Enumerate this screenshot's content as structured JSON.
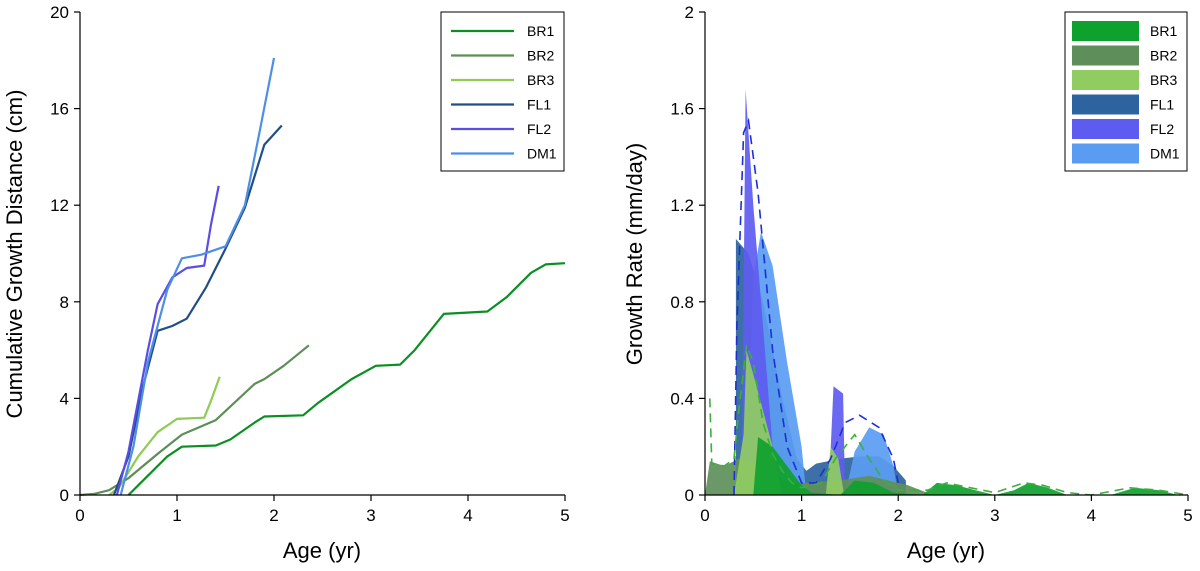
{
  "chart_data": [
    {
      "type": "line",
      "xlabel": "Age (yr)",
      "ylabel": "Cumulative Growth Distance (cm)",
      "xlim": [
        0,
        5
      ],
      "ylim": [
        0,
        20
      ],
      "xticks": [
        "0",
        "1",
        "2",
        "3",
        "4",
        "5"
      ],
      "yticks": [
        "0",
        "4",
        "8",
        "12",
        "16",
        "20"
      ],
      "legend_position": "top-right",
      "series": [
        {
          "name": "BR1",
          "color": "#0a8f22",
          "points": [
            [
              0.5,
              0
            ],
            [
              0.7,
              0.8
            ],
            [
              0.9,
              1.6
            ],
            [
              1.05,
              2.0
            ],
            [
              1.4,
              2.05
            ],
            [
              1.55,
              2.3
            ],
            [
              1.8,
              3.0
            ],
            [
              1.9,
              3.25
            ],
            [
              2.3,
              3.3
            ],
            [
              2.45,
              3.8
            ],
            [
              2.8,
              4.8
            ],
            [
              3.05,
              5.35
            ],
            [
              3.3,
              5.4
            ],
            [
              3.45,
              6.0
            ],
            [
              3.75,
              7.5
            ],
            [
              4.2,
              7.6
            ],
            [
              4.4,
              8.2
            ],
            [
              4.65,
              9.2
            ],
            [
              4.8,
              9.55
            ],
            [
              5.0,
              9.6
            ]
          ]
        },
        {
          "name": "BR2",
          "color": "#5c8f56",
          "points": [
            [
              0,
              0
            ],
            [
              0.15,
              0.05
            ],
            [
              0.3,
              0.2
            ],
            [
              0.5,
              0.7
            ],
            [
              0.8,
              1.7
            ],
            [
              1.05,
              2.5
            ],
            [
              1.4,
              3.1
            ],
            [
              1.8,
              4.6
            ],
            [
              1.9,
              4.8
            ],
            [
              2.1,
              5.35
            ],
            [
              2.36,
              6.2
            ]
          ]
        },
        {
          "name": "BR3",
          "color": "#8fcb55",
          "points": [
            [
              0.3,
              0
            ],
            [
              0.4,
              0.3
            ],
            [
              0.6,
              1.6
            ],
            [
              0.8,
              2.6
            ],
            [
              1.0,
              3.15
            ],
            [
              1.28,
              3.2
            ],
            [
              1.35,
              3.9
            ],
            [
              1.44,
              4.9
            ]
          ]
        },
        {
          "name": "FL1",
          "color": "#1f4f86",
          "points": [
            [
              0.35,
              0
            ],
            [
              0.5,
              1.6
            ],
            [
              0.65,
              4.5
            ],
            [
              0.8,
              6.8
            ],
            [
              0.95,
              7.0
            ],
            [
              1.1,
              7.3
            ],
            [
              1.3,
              8.6
            ],
            [
              1.5,
              10.2
            ],
            [
              1.7,
              11.9
            ],
            [
              1.9,
              14.5
            ],
            [
              2.08,
              15.3
            ]
          ]
        },
        {
          "name": "FL2",
          "color": "#5a4de6",
          "points": [
            [
              0.38,
              0
            ],
            [
              0.5,
              1.8
            ],
            [
              0.7,
              6.0
            ],
            [
              0.8,
              7.9
            ],
            [
              0.95,
              9.0
            ],
            [
              1.1,
              9.4
            ],
            [
              1.28,
              9.5
            ],
            [
              1.35,
              11.2
            ],
            [
              1.43,
              12.8
            ]
          ]
        },
        {
          "name": "DM1",
          "color": "#4d8fe6",
          "points": [
            [
              0.42,
              0
            ],
            [
              0.55,
              2.0
            ],
            [
              0.7,
              5.5
            ],
            [
              0.9,
              8.5
            ],
            [
              1.05,
              9.8
            ],
            [
              1.25,
              9.95
            ],
            [
              1.5,
              10.3
            ],
            [
              1.7,
              12.0
            ],
            [
              1.85,
              15.0
            ],
            [
              2.0,
              18.1
            ]
          ]
        }
      ]
    },
    {
      "type": "area",
      "xlabel": "Age (yr)",
      "ylabel": "Growth Rate (mm/day)",
      "xlim": [
        0,
        5
      ],
      "ylim": [
        0,
        2
      ],
      "xticks": [
        "0",
        "1",
        "2",
        "3",
        "4",
        "5"
      ],
      "yticks": [
        "0",
        "0.4",
        "0.8",
        "1.2",
        "1.6",
        "2"
      ],
      "legend_position": "top-right",
      "series": [
        {
          "name": "FL1",
          "color": "#2d64a0",
          "points": [
            [
              0.32,
              0
            ],
            [
              0.32,
              1.06
            ],
            [
              0.45,
              1.0
            ],
            [
              0.6,
              0.8
            ],
            [
              0.8,
              0.4
            ],
            [
              0.95,
              0.15
            ],
            [
              1.05,
              0.1
            ],
            [
              1.15,
              0.13
            ],
            [
              1.4,
              0.15
            ],
            [
              1.6,
              0.16
            ],
            [
              1.8,
              0.16
            ],
            [
              1.95,
              0.12
            ],
            [
              2.08,
              0.06
            ],
            [
              2.08,
              0
            ]
          ]
        },
        {
          "name": "DM1",
          "color": "#5a9cf2",
          "points": [
            [
              0.42,
              0
            ],
            [
              0.5,
              0.9
            ],
            [
              0.58,
              1.09
            ],
            [
              0.7,
              0.95
            ],
            [
              0.85,
              0.55
            ],
            [
              1.0,
              0.2
            ],
            [
              1.05,
              0
            ],
            [
              1.45,
              0
            ],
            [
              1.55,
              0.18
            ],
            [
              1.7,
              0.28
            ],
            [
              1.85,
              0.25
            ],
            [
              1.95,
              0.12
            ],
            [
              2.0,
              0
            ]
          ]
        },
        {
          "name": "FL2",
          "color": "#5e5cf0",
          "points": [
            [
              0.38,
              0
            ],
            [
              0.42,
              1.68
            ],
            [
              0.5,
              1.2
            ],
            [
              0.6,
              0.7
            ],
            [
              0.7,
              0.2
            ],
            [
              0.8,
              0
            ],
            [
              1.28,
              0
            ],
            [
              1.33,
              0.45
            ],
            [
              1.43,
              0.42
            ],
            [
              1.45,
              0
            ]
          ]
        },
        {
          "name": "BR2",
          "color": "#5e8f5a",
          "points": [
            [
              0,
              0
            ],
            [
              0.05,
              0.14
            ],
            [
              0.2,
              0.12
            ],
            [
              0.35,
              0.15
            ],
            [
              0.45,
              0.14
            ],
            [
              0.6,
              0.1
            ],
            [
              0.8,
              0.06
            ],
            [
              1.0,
              0.05
            ],
            [
              1.4,
              0.06
            ],
            [
              1.7,
              0.08
            ],
            [
              1.9,
              0.06
            ],
            [
              2.1,
              0.04
            ],
            [
              2.36,
              0
            ]
          ]
        },
        {
          "name": "BR3",
          "color": "#90cc62",
          "points": [
            [
              0.3,
              0
            ],
            [
              0.4,
              0.25
            ],
            [
              0.43,
              0.6
            ],
            [
              0.5,
              0.5
            ],
            [
              0.6,
              0.35
            ],
            [
              0.7,
              0.2
            ],
            [
              0.8,
              0
            ],
            [
              1.25,
              0
            ],
            [
              1.3,
              0.2
            ],
            [
              1.38,
              0.15
            ],
            [
              1.44,
              0
            ]
          ]
        },
        {
          "name": "BR1",
          "color": "#0ea12e",
          "points": [
            [
              0.5,
              0
            ],
            [
              0.55,
              0.24
            ],
            [
              0.7,
              0.2
            ],
            [
              0.85,
              0.12
            ],
            [
              1.0,
              0.04
            ],
            [
              1.1,
              0.01
            ],
            [
              1.4,
              0
            ],
            [
              1.55,
              0.06
            ],
            [
              1.75,
              0.05
            ],
            [
              1.95,
              0.01
            ],
            [
              2.25,
              0
            ],
            [
              2.4,
              0.05
            ],
            [
              2.6,
              0.04
            ],
            [
              2.8,
              0.02
            ],
            [
              3.0,
              0
            ],
            [
              3.2,
              0.02
            ],
            [
              3.35,
              0.05
            ],
            [
              3.55,
              0.03
            ],
            [
              3.75,
              0
            ],
            [
              4.2,
              0
            ],
            [
              4.45,
              0.03
            ],
            [
              4.7,
              0.02
            ],
            [
              4.9,
              0
            ]
          ]
        }
      ],
      "legend_order": [
        "BR1",
        "BR2",
        "BR3",
        "FL1",
        "FL2",
        "DM1"
      ],
      "fit_curves": [
        {
          "color": "#1c2fd6",
          "points": [
            [
              0.3,
              0.0
            ],
            [
              0.33,
              0.7
            ],
            [
              0.4,
              1.5
            ],
            [
              0.45,
              1.55
            ],
            [
              0.55,
              1.25
            ],
            [
              0.7,
              0.6
            ],
            [
              0.85,
              0.2
            ],
            [
              1.0,
              0.05
            ],
            [
              1.15,
              0.05
            ],
            [
              1.3,
              0.15
            ],
            [
              1.45,
              0.3
            ],
            [
              1.6,
              0.33
            ],
            [
              1.8,
              0.28
            ],
            [
              1.95,
              0.15
            ],
            [
              2.0,
              0.05
            ]
          ]
        },
        {
          "color": "#3caf3c",
          "points": [
            [
              0.05,
              0.4
            ],
            [
              0.07,
              0.13
            ],
            [
              0.2,
              0.12
            ],
            [
              0.3,
              0.15
            ],
            [
              0.35,
              0.35
            ],
            [
              0.43,
              0.62
            ],
            [
              0.5,
              0.55
            ],
            [
              0.6,
              0.3
            ],
            [
              0.7,
              0.17
            ],
            [
              0.8,
              0.1
            ],
            [
              0.9,
              0.05
            ],
            [
              1.0,
              0.03
            ],
            [
              1.2,
              0.05
            ],
            [
              1.35,
              0.15
            ],
            [
              1.55,
              0.25
            ],
            [
              1.7,
              0.15
            ],
            [
              1.85,
              0.06
            ],
            [
              2.0,
              0.02
            ],
            [
              2.3,
              0.02
            ],
            [
              2.5,
              0.05
            ],
            [
              2.75,
              0.03
            ],
            [
              3.0,
              0.01
            ],
            [
              3.3,
              0.05
            ],
            [
              3.5,
              0.04
            ],
            [
              3.75,
              0.01
            ],
            [
              4.0,
              0.0
            ],
            [
              4.4,
              0.03
            ],
            [
              4.7,
              0.02
            ],
            [
              5.0,
              0.0
            ]
          ]
        }
      ]
    }
  ]
}
